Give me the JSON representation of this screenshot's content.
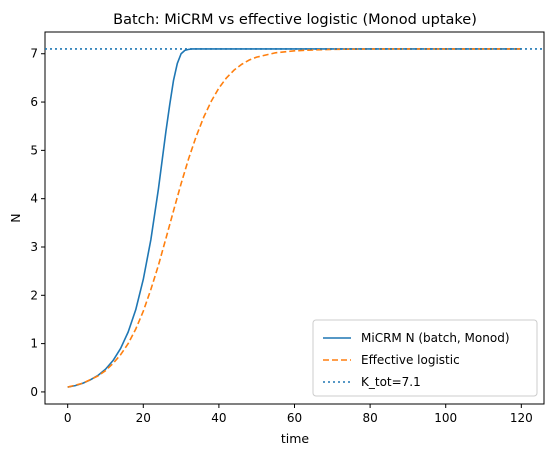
{
  "chart_data": {
    "type": "line",
    "title": "Batch: MiCRM vs effective logistic (Monod uptake)",
    "xlabel": "time",
    "ylabel": "N",
    "xlim": [
      -6,
      126
    ],
    "ylim": [
      -0.25,
      7.45
    ],
    "xticks": [
      0,
      20,
      40,
      60,
      80,
      100,
      120
    ],
    "yticks": [
      0,
      1,
      2,
      3,
      4,
      5,
      6,
      7
    ],
    "grid": false,
    "legend_position": "lower-right",
    "series": [
      {
        "name": "MiCRM N (batch, Monod)",
        "color": "#1f77b4",
        "style": "solid",
        "x": [
          0,
          2,
          4,
          6,
          8,
          10,
          12,
          14,
          16,
          18,
          20,
          22,
          24,
          25,
          26,
          27,
          28,
          29,
          30,
          31,
          32,
          33,
          34,
          36,
          40,
          50,
          60,
          80,
          100,
          120
        ],
        "y": [
          0.1,
          0.13,
          0.18,
          0.25,
          0.34,
          0.47,
          0.65,
          0.9,
          1.24,
          1.7,
          2.33,
          3.15,
          4.2,
          4.8,
          5.4,
          5.95,
          6.45,
          6.8,
          7.0,
          7.07,
          7.09,
          7.1,
          7.1,
          7.1,
          7.1,
          7.1,
          7.1,
          7.1,
          7.1,
          7.1
        ]
      },
      {
        "name": "Effective logistic",
        "color": "#ff7f0e",
        "style": "dashed",
        "x": [
          0,
          4,
          8,
          10,
          12,
          14,
          16,
          18,
          20,
          22,
          24,
          26,
          28,
          30,
          32,
          34,
          36,
          38,
          40,
          42,
          44,
          46,
          48,
          50,
          55,
          60,
          65,
          70,
          80,
          90,
          100,
          120
        ],
        "y": [
          0.1,
          0.18,
          0.33,
          0.44,
          0.59,
          0.77,
          1.0,
          1.3,
          1.67,
          2.12,
          2.62,
          3.18,
          3.75,
          4.31,
          4.83,
          5.29,
          5.69,
          6.02,
          6.29,
          6.5,
          6.66,
          6.78,
          6.87,
          6.93,
          7.02,
          7.06,
          7.08,
          7.09,
          7.1,
          7.1,
          7.1,
          7.1
        ]
      },
      {
        "name": "K_tot=7.1",
        "color": "#1f77b4",
        "style": "dotted",
        "hline": 7.1
      }
    ]
  }
}
